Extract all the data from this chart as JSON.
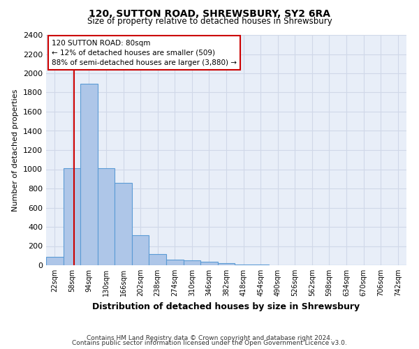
{
  "title": "120, SUTTON ROAD, SHREWSBURY, SY2 6RA",
  "subtitle": "Size of property relative to detached houses in Shrewsbury",
  "xlabel": "Distribution of detached houses by size in Shrewsbury",
  "ylabel": "Number of detached properties",
  "footer_line1": "Contains HM Land Registry data © Crown copyright and database right 2024.",
  "footer_line2": "Contains public sector information licensed under the Open Government Licence v3.0.",
  "property_line_x": 80,
  "annotation_line1": "120 SUTTON ROAD: 80sqm",
  "annotation_line2": "← 12% of detached houses are smaller (509)",
  "annotation_line3": "88% of semi-detached houses are larger (3,880) →",
  "bin_edges": [
    22,
    58,
    94,
    130,
    166,
    202,
    238,
    274,
    310,
    346,
    382,
    418,
    454,
    490,
    526,
    562,
    598,
    634,
    670,
    706,
    742
  ],
  "bar_heights": [
    90,
    1010,
    1890,
    1010,
    860,
    310,
    120,
    60,
    50,
    40,
    20,
    10,
    5,
    3,
    2,
    2,
    1,
    1,
    1,
    1,
    1
  ],
  "bar_color": "#aec6e8",
  "bar_edge_color": "#5b9bd5",
  "line_color": "#cc0000",
  "annotation_box_color": "#ffffff",
  "annotation_box_edge": "#cc0000",
  "grid_color": "#d0d8e8",
  "bg_color": "#e8eef8",
  "ylim": [
    0,
    2400
  ],
  "yticks": [
    0,
    200,
    400,
    600,
    800,
    1000,
    1200,
    1400,
    1600,
    1800,
    2000,
    2200,
    2400
  ]
}
